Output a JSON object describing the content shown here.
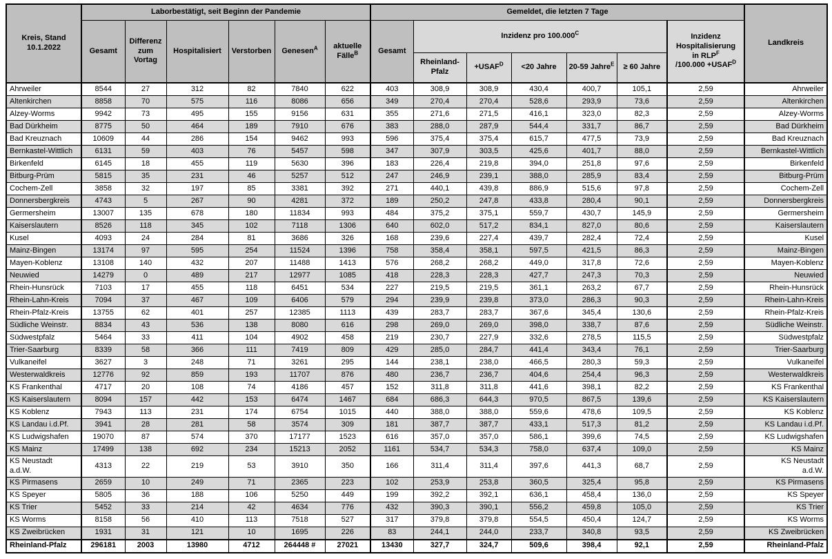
{
  "table": {
    "corner": {
      "line1": "Kreis, Stand",
      "line2": "10.1.2022"
    },
    "groups": {
      "labor": "Laborbestätigt, seit Beginn der Pandemie",
      "gemeldet": "Gemeldet, die letzten 7 Tage"
    },
    "cols": {
      "gesamt": "Gesamt",
      "differenz": "Differenz zum Vortag",
      "hospitalisiert": "Hospitalisiert",
      "verstorben": "Verstorben",
      "genesen": "Genesen",
      "genesen_sup": "A",
      "aktuelle_faelle": "aktuelle Fälle",
      "aktuelle_faelle_sup": "B",
      "gesamt7": "Gesamt",
      "inzidenz": "Inzidenz pro 100.000",
      "inzidenz_sup": "C",
      "rlp": "Rheinland-Pfalz",
      "usaf": "+USAF",
      "usaf_sup": "D",
      "u20": "<20 Jahre",
      "j2059": "20-59 Jahre",
      "j2059_sup": "E",
      "u60": "≥ 60 Jahre",
      "hosp": {
        "line1": "Inzidenz",
        "line2": "Hospitalisierung",
        "line3": "in RLP",
        "line3_sup": "F",
        "line4": "/100.000 +USAF",
        "line4_sup": "D"
      },
      "landkreis": "Landkreis"
    },
    "rows": [
      {
        "kreis": "Ahrweiler",
        "values": [
          "8544",
          "27",
          "312",
          "82",
          "7840",
          "622",
          "403",
          "308,9",
          "308,9",
          "430,4",
          "400,7",
          "105,1",
          "2,59"
        ],
        "landkreis": "Ahrweiler"
      },
      {
        "kreis": "Altenkirchen",
        "values": [
          "8858",
          "70",
          "575",
          "116",
          "8086",
          "656",
          "349",
          "270,4",
          "270,4",
          "528,6",
          "293,9",
          "73,6",
          "2,59"
        ],
        "landkreis": "Altenkirchen"
      },
      {
        "kreis": "Alzey-Worms",
        "values": [
          "9942",
          "73",
          "495",
          "155",
          "9156",
          "631",
          "355",
          "271,6",
          "271,5",
          "416,1",
          "323,0",
          "82,3",
          "2,59"
        ],
        "landkreis": "Alzey-Worms"
      },
      {
        "kreis": "Bad Dürkheim",
        "values": [
          "8775",
          "50",
          "464",
          "189",
          "7910",
          "676",
          "383",
          "288,0",
          "287,9",
          "544,4",
          "331,7",
          "86,7",
          "2,59"
        ],
        "landkreis": "Bad Dürkheim"
      },
      {
        "kreis": "Bad Kreuznach",
        "values": [
          "10609",
          "44",
          "286",
          "154",
          "9462",
          "993",
          "596",
          "375,4",
          "375,4",
          "615,7",
          "477,5",
          "73,9",
          "2,59"
        ],
        "landkreis": "Bad Kreuznach"
      },
      {
        "kreis": "Bernkastel-Wittlich",
        "values": [
          "6131",
          "59",
          "403",
          "76",
          "5457",
          "598",
          "347",
          "307,9",
          "303,5",
          "425,6",
          "401,7",
          "88,0",
          "2,59"
        ],
        "landkreis": "Bernkastel-Wittlich"
      },
      {
        "kreis": "Birkenfeld",
        "values": [
          "6145",
          "18",
          "455",
          "119",
          "5630",
          "396",
          "183",
          "226,4",
          "219,8",
          "394,0",
          "251,8",
          "97,6",
          "2,59"
        ],
        "landkreis": "Birkenfeld"
      },
      {
        "kreis": "Bitburg-Prüm",
        "values": [
          "5815",
          "35",
          "231",
          "46",
          "5257",
          "512",
          "247",
          "246,9",
          "239,1",
          "388,0",
          "285,9",
          "83,4",
          "2,59"
        ],
        "landkreis": "Bitburg-Prüm"
      },
      {
        "kreis": "Cochem-Zell",
        "values": [
          "3858",
          "32",
          "197",
          "85",
          "3381",
          "392",
          "271",
          "440,1",
          "439,8",
          "886,9",
          "515,6",
          "97,8",
          "2,59"
        ],
        "landkreis": "Cochem-Zell"
      },
      {
        "kreis": "Donnersbergkreis",
        "values": [
          "4743",
          "5",
          "267",
          "90",
          "4281",
          "372",
          "189",
          "250,2",
          "247,8",
          "433,8",
          "280,4",
          "90,1",
          "2,59"
        ],
        "landkreis": "Donnersbergkreis"
      },
      {
        "kreis": "Germersheim",
        "values": [
          "13007",
          "135",
          "678",
          "180",
          "11834",
          "993",
          "484",
          "375,2",
          "375,1",
          "559,7",
          "430,7",
          "145,9",
          "2,59"
        ],
        "landkreis": "Germersheim"
      },
      {
        "kreis": "Kaiserslautern",
        "values": [
          "8526",
          "118",
          "345",
          "102",
          "7118",
          "1306",
          "640",
          "602,0",
          "517,2",
          "834,1",
          "827,0",
          "80,6",
          "2,59"
        ],
        "landkreis": "Kaiserslautern"
      },
      {
        "kreis": "Kusel",
        "values": [
          "4093",
          "24",
          "284",
          "81",
          "3686",
          "326",
          "168",
          "239,6",
          "227,4",
          "439,7",
          "282,4",
          "72,4",
          "2,59"
        ],
        "landkreis": "Kusel"
      },
      {
        "kreis": "Mainz-Bingen",
        "values": [
          "13174",
          "97",
          "595",
          "254",
          "11524",
          "1396",
          "758",
          "358,4",
          "358,1",
          "597,5",
          "421,5",
          "86,3",
          "2,59"
        ],
        "landkreis": "Mainz-Bingen"
      },
      {
        "kreis": "Mayen-Koblenz",
        "values": [
          "13108",
          "140",
          "432",
          "207",
          "11488",
          "1413",
          "576",
          "268,2",
          "268,2",
          "449,0",
          "317,8",
          "72,6",
          "2,59"
        ],
        "landkreis": "Mayen-Koblenz"
      },
      {
        "kreis": "Neuwied",
        "values": [
          "14279",
          "0",
          "489",
          "217",
          "12977",
          "1085",
          "418",
          "228,3",
          "228,3",
          "427,7",
          "247,3",
          "70,3",
          "2,59"
        ],
        "landkreis": "Neuwied"
      },
      {
        "kreis": "Rhein-Hunsrück",
        "values": [
          "7103",
          "17",
          "455",
          "118",
          "6451",
          "534",
          "227",
          "219,5",
          "219,5",
          "361,1",
          "263,2",
          "67,7",
          "2,59"
        ],
        "landkreis": "Rhein-Hunsrück"
      },
      {
        "kreis": "Rhein-Lahn-Kreis",
        "values": [
          "7094",
          "37",
          "467",
          "109",
          "6406",
          "579",
          "294",
          "239,9",
          "239,8",
          "373,0",
          "286,3",
          "90,3",
          "2,59"
        ],
        "landkreis": "Rhein-Lahn-Kreis"
      },
      {
        "kreis": "Rhein-Pfalz-Kreis",
        "values": [
          "13755",
          "62",
          "401",
          "257",
          "12385",
          "1113",
          "439",
          "283,7",
          "283,7",
          "367,6",
          "345,4",
          "130,6",
          "2,59"
        ],
        "landkreis": "Rhein-Pfalz-Kreis"
      },
      {
        "kreis": "Südliche Weinstr.",
        "values": [
          "8834",
          "43",
          "536",
          "138",
          "8080",
          "616",
          "298",
          "269,0",
          "269,0",
          "398,0",
          "338,7",
          "87,6",
          "2,59"
        ],
        "landkreis": "Südliche Weinstr."
      },
      {
        "kreis": "Südwestpfalz",
        "values": [
          "5464",
          "33",
          "411",
          "104",
          "4902",
          "458",
          "219",
          "230,7",
          "227,9",
          "332,6",
          "278,5",
          "115,5",
          "2,59"
        ],
        "landkreis": "Südwestpfalz"
      },
      {
        "kreis": "Trier-Saarburg",
        "values": [
          "8339",
          "58",
          "366",
          "111",
          "7419",
          "809",
          "429",
          "285,0",
          "284,7",
          "441,4",
          "343,4",
          "76,1",
          "2,59"
        ],
        "landkreis": "Trier-Saarburg"
      },
      {
        "kreis": "Vulkaneifel",
        "values": [
          "3627",
          "3",
          "248",
          "71",
          "3261",
          "295",
          "144",
          "238,1",
          "238,0",
          "466,5",
          "280,3",
          "59,3",
          "2,59"
        ],
        "landkreis": "Vulkaneifel"
      },
      {
        "kreis": "Westerwaldkreis",
        "values": [
          "12776",
          "92",
          "859",
          "193",
          "11707",
          "876",
          "480",
          "236,7",
          "236,7",
          "404,6",
          "254,4",
          "96,3",
          "2,59"
        ],
        "landkreis": "Westerwaldkreis"
      },
      {
        "kreis": "KS Frankenthal",
        "values": [
          "4717",
          "20",
          "108",
          "74",
          "4186",
          "457",
          "152",
          "311,8",
          "311,8",
          "441,6",
          "398,1",
          "82,2",
          "2,59"
        ],
        "landkreis": "KS Frankenthal"
      },
      {
        "kreis": "KS Kaiserslautern",
        "values": [
          "8094",
          "157",
          "442",
          "153",
          "6474",
          "1467",
          "684",
          "686,3",
          "644,3",
          "970,5",
          "867,5",
          "139,6",
          "2,59"
        ],
        "landkreis": "KS Kaiserslautern"
      },
      {
        "kreis": "KS Koblenz",
        "values": [
          "7943",
          "113",
          "231",
          "174",
          "6754",
          "1015",
          "440",
          "388,0",
          "388,0",
          "559,6",
          "478,6",
          "109,5",
          "2,59"
        ],
        "landkreis": "KS Koblenz"
      },
      {
        "kreis": "KS Landau i.d.Pf.",
        "values": [
          "3941",
          "28",
          "281",
          "58",
          "3574",
          "309",
          "181",
          "387,7",
          "387,7",
          "433,1",
          "517,3",
          "81,2",
          "2,59"
        ],
        "landkreis": "KS Landau i.d.Pf."
      },
      {
        "kreis": "KS Ludwigshafen",
        "values": [
          "19070",
          "87",
          "574",
          "370",
          "17177",
          "1523",
          "616",
          "357,0",
          "357,0",
          "586,1",
          "399,6",
          "74,5",
          "2,59"
        ],
        "landkreis": "KS Ludwigshafen"
      },
      {
        "kreis": "KS Mainz",
        "values": [
          "17499",
          "138",
          "692",
          "234",
          "15213",
          "2052",
          "1161",
          "534,7",
          "534,3",
          "758,0",
          "637,4",
          "109,0",
          "2,59"
        ],
        "landkreis": "KS Mainz"
      },
      {
        "kreis": "KS Neustadt\na.d.W.",
        "values": [
          "4313",
          "22",
          "219",
          "53",
          "3910",
          "350",
          "166",
          "311,4",
          "311,4",
          "397,6",
          "441,3",
          "68,7",
          "2,59"
        ],
        "landkreis": "KS Neustadt\na.d.W."
      },
      {
        "kreis": "KS Pirmasens",
        "values": [
          "2659",
          "10",
          "249",
          "71",
          "2365",
          "223",
          "102",
          "253,9",
          "253,8",
          "360,5",
          "325,4",
          "95,8",
          "2,59"
        ],
        "landkreis": "KS Pirmasens"
      },
      {
        "kreis": "KS Speyer",
        "values": [
          "5805",
          "36",
          "188",
          "106",
          "5250",
          "449",
          "199",
          "392,2",
          "392,1",
          "636,1",
          "458,4",
          "136,0",
          "2,59"
        ],
        "landkreis": "KS Speyer"
      },
      {
        "kreis": "KS Trier",
        "values": [
          "5452",
          "33",
          "214",
          "42",
          "4634",
          "776",
          "432",
          "390,3",
          "390,1",
          "556,2",
          "459,8",
          "105,0",
          "2,59"
        ],
        "landkreis": "KS Trier"
      },
      {
        "kreis": "KS Worms",
        "values": [
          "8158",
          "56",
          "410",
          "113",
          "7518",
          "527",
          "317",
          "379,8",
          "379,8",
          "554,5",
          "450,4",
          "124,7",
          "2,59"
        ],
        "landkreis": "KS Worms"
      },
      {
        "kreis": "KS Zweibrücken",
        "values": [
          "1931",
          "31",
          "121",
          "10",
          "1695",
          "226",
          "83",
          "244,1",
          "244,0",
          "233,7",
          "340,8",
          "93,5",
          "2,59"
        ],
        "landkreis": "KS Zweibrücken"
      }
    ],
    "total": {
      "kreis": "Rheinland-Pfalz",
      "values": [
        "296181",
        "2003",
        "13980",
        "4712",
        "264448 #",
        "27021",
        "13430",
        "327,7",
        "324,7",
        "509,6",
        "398,4",
        "92,1",
        "2,59"
      ],
      "landkreis": "Rheinland-Pfalz"
    }
  },
  "colors": {
    "header_dark": "#bfbfbf",
    "header_light": "#d9d9d9",
    "row_alt": "#d9d9d9",
    "border": "#000000"
  }
}
